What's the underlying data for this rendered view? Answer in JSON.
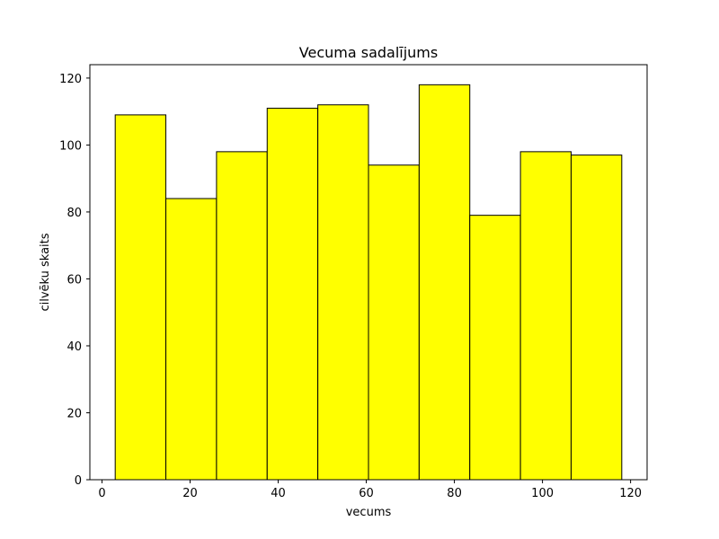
{
  "chart_data": {
    "type": "bar",
    "title": "Vecuma sadalījums",
    "xlabel": "vecums",
    "ylabel": "cilvēku skaits",
    "bins": [
      [
        3.0,
        14.5
      ],
      [
        14.5,
        26.0
      ],
      [
        26.0,
        37.5
      ],
      [
        37.5,
        49.0
      ],
      [
        49.0,
        60.5
      ],
      [
        60.5,
        72.0
      ],
      [
        72.0,
        83.5
      ],
      [
        83.5,
        95.0
      ],
      [
        95.0,
        106.5
      ],
      [
        106.5,
        118.0
      ]
    ],
    "values": [
      109,
      84,
      98,
      111,
      112,
      94,
      118,
      79,
      98,
      97
    ],
    "xlim": [
      -2.75,
      123.75
    ],
    "ylim": [
      0,
      124
    ],
    "xticks": [
      0,
      20,
      40,
      60,
      80,
      100,
      120
    ],
    "yticks": [
      0,
      20,
      40,
      60,
      80,
      100,
      120
    ],
    "bar_color": "#ffff00",
    "edge_color": "#000000",
    "grid": false
  }
}
